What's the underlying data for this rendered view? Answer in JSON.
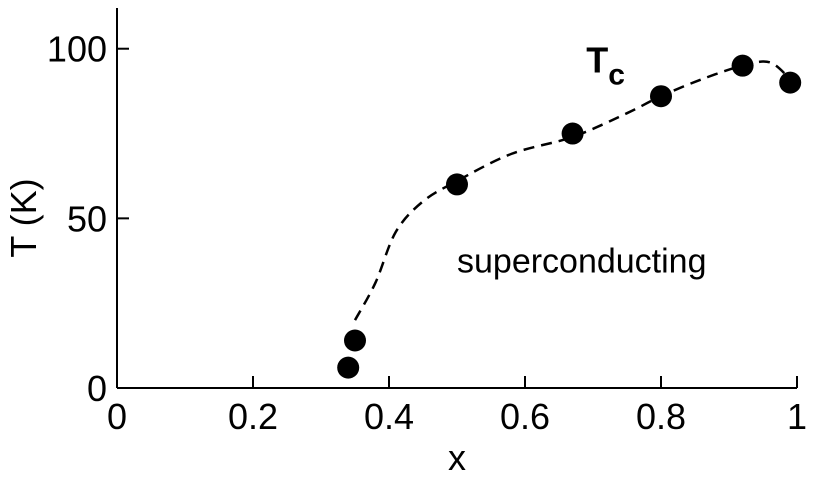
{
  "chart_data": {
    "type": "scatter",
    "title": "",
    "xlabel": "x",
    "ylabel": "T (K)",
    "xlim": [
      0,
      1
    ],
    "ylim": [
      0,
      112
    ],
    "x_ticks": [
      0,
      0.2,
      0.4,
      0.6,
      0.8,
      1
    ],
    "x_tick_labels": [
      "0",
      "0.2",
      "0.4",
      "0.6",
      "0.8",
      "1"
    ],
    "y_ticks": [
      0,
      50,
      100
    ],
    "y_tick_labels": [
      "0",
      "50",
      "100"
    ],
    "grid": false,
    "legend": "none",
    "series": [
      {
        "marker": "filled-circle",
        "color": "#000000",
        "x": [
          0.34,
          0.35,
          0.5,
          0.67,
          0.8,
          0.92,
          0.99
        ],
        "y": [
          6,
          14,
          60,
          75,
          86,
          95,
          90
        ]
      }
    ],
    "trend_line": {
      "style": "dashed",
      "color": "#000000",
      "x": [
        0.35,
        0.38,
        0.41,
        0.45,
        0.5,
        0.58,
        0.67,
        0.75,
        0.8,
        0.86,
        0.92,
        0.96,
        0.99
      ],
      "y": [
        20,
        31,
        46,
        55,
        61,
        69,
        74,
        81,
        86,
        91,
        95,
        96,
        91
      ]
    },
    "annotations": [
      {
        "text": "T",
        "subscript": "c",
        "x": 0.69,
        "y": 93
      },
      {
        "text": "superconducting",
        "x": 0.5,
        "y": 34
      }
    ]
  }
}
